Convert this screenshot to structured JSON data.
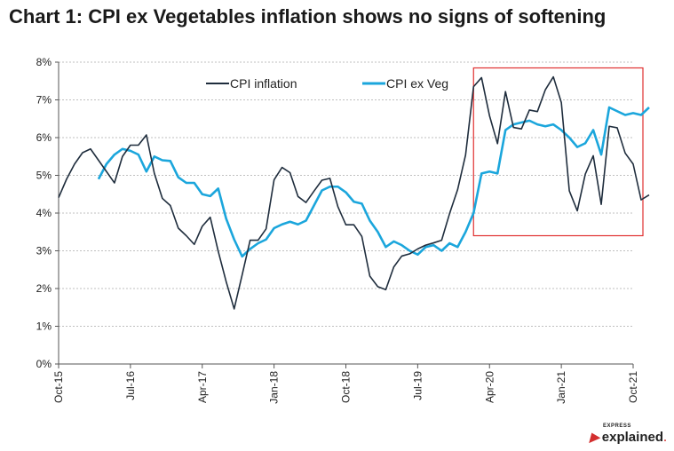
{
  "title": "Chart 1:  CPI ex Vegetables inflation shows no signs of softening",
  "logo": {
    "small": "EXPRESS",
    "main": "explained",
    "dot": "."
  },
  "chart_data": {
    "type": "line",
    "x_labels": [
      "Oct-15",
      "Jul-16",
      "Apr-17",
      "Jan-18",
      "Oct-18",
      "Jul-19",
      "Apr-20",
      "Jan-21",
      "Oct-21"
    ],
    "x_range": [
      "2015-10",
      "2021-10"
    ],
    "yticks": [
      "0%",
      "1%",
      "2%",
      "3%",
      "4%",
      "5%",
      "6%",
      "7%",
      "8%"
    ],
    "ylim": [
      0,
      8
    ],
    "grid": true,
    "legend_position": "top-center",
    "highlight_box": {
      "x_start": "2020-03",
      "x_end": "2021-10",
      "y_min": 3.4,
      "y_max": 7.8,
      "color": "#e03030"
    },
    "series": [
      {
        "name": "CPI inflation",
        "color": "#1f2d3d",
        "values": [
          4.41,
          4.9,
          5.3,
          5.6,
          5.7,
          5.4,
          5.1,
          4.8,
          5.5,
          5.8,
          5.8,
          6.07,
          5.05,
          4.39,
          4.2,
          3.6,
          3.4,
          3.17,
          3.65,
          3.89,
          2.99,
          2.18,
          1.46,
          2.36,
          3.28,
          3.28,
          3.58,
          4.88,
          5.21,
          5.07,
          4.44,
          4.28,
          4.58,
          4.87,
          4.92,
          4.17,
          3.69,
          3.69,
          3.38,
          2.33,
          2.05,
          1.97,
          2.57,
          2.86,
          2.92,
          3.05,
          3.15,
          3.21,
          3.28,
          3.99,
          4.62,
          5.54,
          7.35,
          7.59,
          6.58,
          5.84,
          7.22,
          6.27,
          6.23,
          6.73,
          6.69,
          7.27,
          7.61,
          6.93,
          4.59,
          4.06,
          5.03,
          5.52,
          4.23,
          6.3,
          6.26,
          5.59,
          5.3,
          4.35,
          4.48
        ],
        "start": "2015-10"
      },
      {
        "name": "CPI ex Veg",
        "color": "#1ba6dc",
        "values": [
          4.9,
          5.3,
          5.55,
          5.7,
          5.65,
          5.55,
          5.1,
          5.5,
          5.4,
          5.38,
          4.95,
          4.8,
          4.8,
          4.5,
          4.45,
          4.65,
          3.85,
          3.3,
          2.85,
          3.05,
          3.2,
          3.3,
          3.6,
          3.7,
          3.77,
          3.7,
          3.8,
          4.2,
          4.6,
          4.7,
          4.7,
          4.55,
          4.3,
          4.25,
          3.8,
          3.5,
          3.1,
          3.25,
          3.15,
          3.0,
          2.9,
          3.1,
          3.15,
          3.0,
          3.2,
          3.1,
          3.5,
          4.0,
          5.05,
          5.1,
          5.05,
          6.2,
          6.35,
          6.4,
          6.45,
          6.35,
          6.3,
          6.35,
          6.2,
          6.0,
          5.75,
          5.85,
          6.2,
          5.55,
          6.8,
          6.7,
          6.6,
          6.65,
          6.6,
          6.8
        ],
        "start": "2016-03"
      }
    ]
  }
}
